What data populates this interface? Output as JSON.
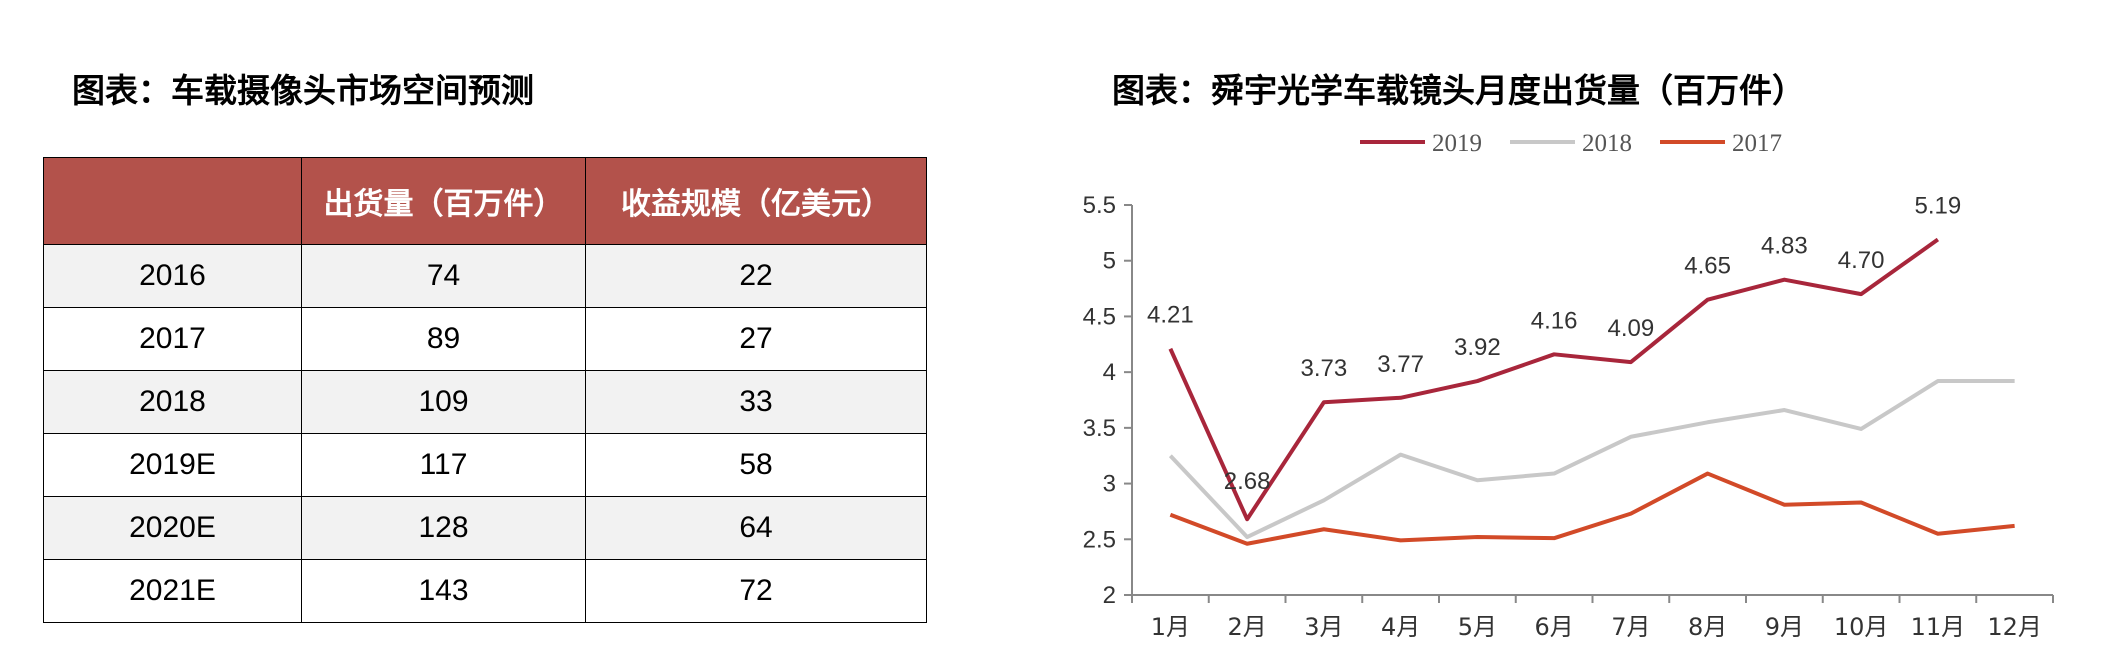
{
  "left": {
    "title": "图表：车载摄像头市场空间预测",
    "table": {
      "headers": [
        "",
        "出货量（百万件）",
        "收益规模（亿美元）"
      ],
      "rows": [
        [
          "2016",
          "74",
          "22"
        ],
        [
          "2017",
          "89",
          "27"
        ],
        [
          "2018",
          "109",
          "33"
        ],
        [
          "2019E",
          "117",
          "58"
        ],
        [
          "2020E",
          "128",
          "64"
        ],
        [
          "2021E",
          "143",
          "72"
        ]
      ]
    }
  },
  "right": {
    "title": "图表：舜宇光学车载镜头月度出货量（百万件）"
  },
  "chart_data": {
    "type": "line",
    "title": "",
    "xlabel": "",
    "ylabel": "",
    "x": [
      "1月",
      "2月",
      "3月",
      "4月",
      "5月",
      "6月",
      "7月",
      "8月",
      "9月",
      "10月",
      "11月",
      "12月"
    ],
    "ylim": [
      2,
      5.5
    ],
    "yticks": [
      "2",
      "2.5",
      "3",
      "3.5",
      "4",
      "4.5",
      "5",
      "5.5"
    ],
    "legend_position": "top",
    "grid": false,
    "series": [
      {
        "name": "2019",
        "color": "#a8263b",
        "values": [
          4.21,
          2.68,
          3.73,
          3.77,
          3.92,
          4.16,
          4.09,
          4.65,
          4.83,
          4.7,
          5.19,
          null
        ],
        "labels": [
          "4.21",
          "2.68",
          "3.73",
          "3.77",
          "3.92",
          "4.16",
          "4.09",
          "4.65",
          "4.83",
          "4.70",
          "5.19",
          ""
        ]
      },
      {
        "name": "2018",
        "color": "#c8c8c8",
        "values": [
          3.25,
          2.52,
          2.85,
          3.26,
          3.03,
          3.09,
          3.42,
          3.55,
          3.66,
          3.49,
          3.92,
          3.92
        ]
      },
      {
        "name": "2017",
        "color": "#d24a28",
        "values": [
          2.72,
          2.46,
          2.59,
          2.49,
          2.52,
          2.51,
          2.73,
          3.09,
          2.81,
          2.83,
          2.55,
          2.62
        ]
      }
    ]
  }
}
